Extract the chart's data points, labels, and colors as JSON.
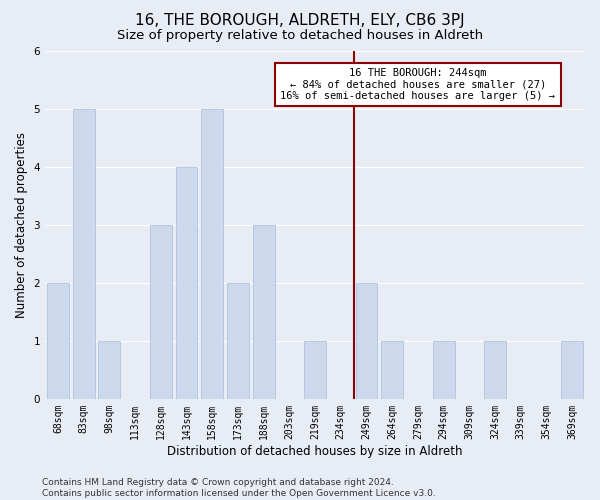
{
  "title": "16, THE BOROUGH, ALDRETH, ELY, CB6 3PJ",
  "subtitle": "Size of property relative to detached houses in Aldreth",
  "xlabel": "Distribution of detached houses by size in Aldreth",
  "ylabel": "Number of detached properties",
  "categories": [
    "68sqm",
    "83sqm",
    "98sqm",
    "113sqm",
    "128sqm",
    "143sqm",
    "158sqm",
    "173sqm",
    "188sqm",
    "203sqm",
    "219sqm",
    "234sqm",
    "249sqm",
    "264sqm",
    "279sqm",
    "294sqm",
    "309sqm",
    "324sqm",
    "339sqm",
    "354sqm",
    "369sqm"
  ],
  "values": [
    2,
    5,
    1,
    0,
    3,
    4,
    5,
    2,
    3,
    0,
    1,
    0,
    2,
    1,
    0,
    1,
    0,
    1,
    0,
    0,
    1
  ],
  "bar_color": "#ccd9ec",
  "bar_edge_color": "#b0c4de",
  "vline_index": 12,
  "vline_color": "#8b0000",
  "annotation_line1": "16 THE BOROUGH: 244sqm",
  "annotation_line2": "← 84% of detached houses are smaller (27)",
  "annotation_line3": "16% of semi-detached houses are larger (5) →",
  "annotation_box_color": "#8b0000",
  "annotation_bg": "white",
  "ylim": [
    0,
    6
  ],
  "yticks": [
    0,
    1,
    2,
    3,
    4,
    5,
    6
  ],
  "footer": "Contains HM Land Registry data © Crown copyright and database right 2024.\nContains public sector information licensed under the Open Government Licence v3.0.",
  "bg_color": "#e8edf5",
  "grid_color": "white",
  "title_fontsize": 11,
  "subtitle_fontsize": 9.5,
  "label_fontsize": 8.5,
  "tick_fontsize": 7,
  "footer_fontsize": 6.5,
  "annotation_fontsize": 7.5
}
